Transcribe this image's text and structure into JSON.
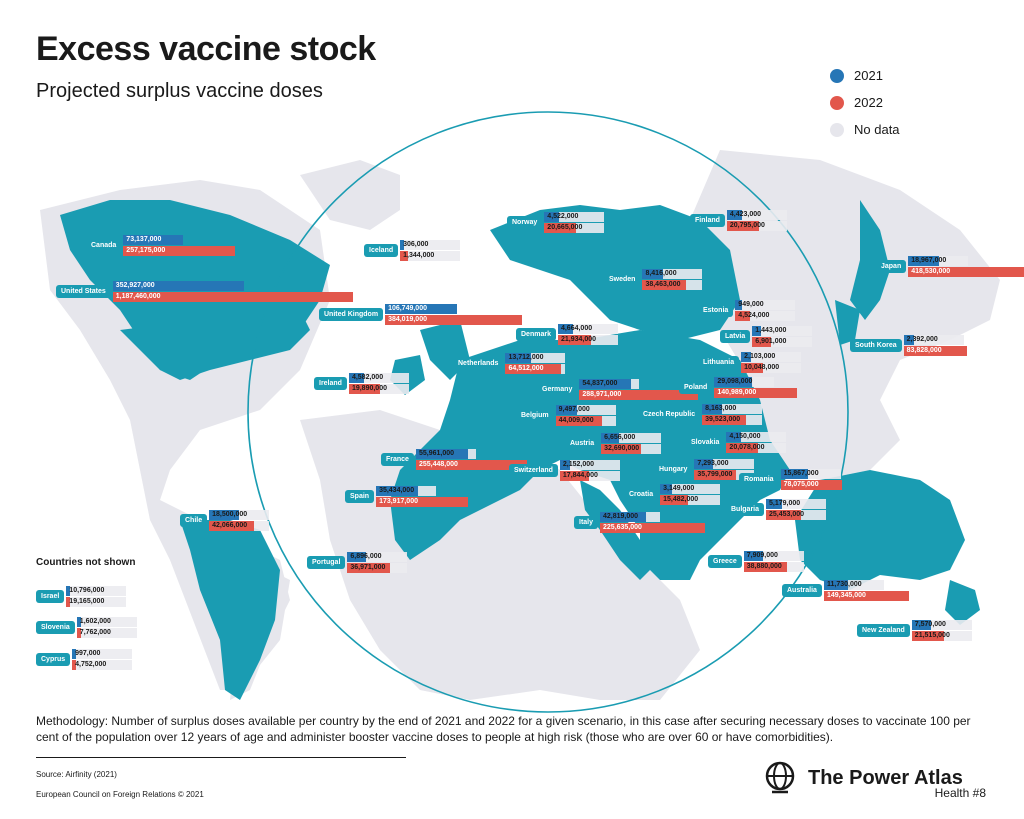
{
  "title": "Excess vaccine stock",
  "subtitle": "Projected surplus vaccine doses",
  "legend": [
    {
      "label": "2021",
      "color": "#2676b6"
    },
    {
      "label": "2022",
      "color": "#e2574c"
    },
    {
      "label": "No data",
      "color": "#e6e6ec"
    }
  ],
  "colors": {
    "map_land": "#1a9cb2",
    "no_data": "#e6e6ec",
    "series_2021": "#2676b6",
    "series_2022": "#e2574c",
    "globe_ring": "#1a9cb2"
  },
  "countries": [
    {
      "name": "Canada",
      "v2021": "73,137,000",
      "v2022": "257,175,000",
      "n2021": 73137000,
      "n2022": 257175000
    },
    {
      "name": "United States",
      "v2021": "352,927,000",
      "v2022": "1,187,460,000",
      "n2021": 352927000,
      "n2022": 1187460000
    },
    {
      "name": "Iceland",
      "v2021": "306,000",
      "v2022": "1,344,000",
      "n2021": 306000,
      "n2022": 1344000
    },
    {
      "name": "Norway",
      "v2021": "4,522,000",
      "v2022": "20,665,000",
      "n2021": 4522000,
      "n2022": 20665000
    },
    {
      "name": "Finland",
      "v2021": "4,423,000",
      "v2022": "20,795,000",
      "n2021": 4423000,
      "n2022": 20795000
    },
    {
      "name": "Sweden",
      "v2021": "8,416,000",
      "v2022": "38,463,000",
      "n2021": 8416000,
      "n2022": 38463000
    },
    {
      "name": "Japan",
      "v2021": "18,967,000",
      "v2022": "418,530,000",
      "n2021": 18967000,
      "n2022": 418530000
    },
    {
      "name": "Estonia",
      "v2021": "949,000",
      "v2022": "4,524,000",
      "n2021": 949000,
      "n2022": 4524000
    },
    {
      "name": "United Kingdom",
      "v2021": "106,749,000",
      "v2022": "384,019,000",
      "n2021": 106749000,
      "n2022": 384019000
    },
    {
      "name": "Denmark",
      "v2021": "4,664,000",
      "v2022": "21,934,000",
      "n2021": 4664000,
      "n2022": 21934000
    },
    {
      "name": "Latvia",
      "v2021": "1,443,000",
      "v2022": "6,901,000",
      "n2021": 1443000,
      "n2022": 6901000
    },
    {
      "name": "South Korea",
      "v2021": "2,392,000",
      "v2022": "83,828,000",
      "n2021": 2392000,
      "n2022": 83828000
    },
    {
      "name": "Lithuania",
      "v2021": "2,103,000",
      "v2022": "10,048,000",
      "n2021": 2103000,
      "n2022": 10048000
    },
    {
      "name": "Netherlands",
      "v2021": "13,712,000",
      "v2022": "64,512,000",
      "n2021": 13712000,
      "n2022": 64512000
    },
    {
      "name": "Ireland",
      "v2021": "4,582,000",
      "v2022": "19,890,000",
      "n2021": 4582000,
      "n2022": 19890000
    },
    {
      "name": "Germany",
      "v2021": "54,837,000",
      "v2022": "288,971,000",
      "n2021": 54837000,
      "n2022": 288971000
    },
    {
      "name": "Poland",
      "v2021": "29,098,000",
      "v2022": "140,989,000",
      "n2021": 29098000,
      "n2022": 140989000
    },
    {
      "name": "Belgium",
      "v2021": "9,497,000",
      "v2022": "44,009,000",
      "n2021": 9497000,
      "n2022": 44009000
    },
    {
      "name": "Czech Republic",
      "v2021": "8,163,000",
      "v2022": "39,523,000",
      "n2021": 8163000,
      "n2022": 39523000
    },
    {
      "name": "Slovakia",
      "v2021": "4,150,000",
      "v2022": "20,078,000",
      "n2021": 4150000,
      "n2022": 20078000
    },
    {
      "name": "Austria",
      "v2021": "6,656,000",
      "v2022": "32,690,000",
      "n2021": 6656000,
      "n2022": 32690000
    },
    {
      "name": "France",
      "v2021": "55,961,000",
      "v2022": "255,448,000",
      "n2021": 55961000,
      "n2022": 255448000
    },
    {
      "name": "Hungary",
      "v2021": "7,293,000",
      "v2022": "35,799,000",
      "n2021": 7293000,
      "n2022": 35799000
    },
    {
      "name": "Switzerland",
      "v2021": "2,152,000",
      "v2022": "17,844,000",
      "n2021": 2152000,
      "n2022": 17844000
    },
    {
      "name": "Romania",
      "v2021": "15,867,000",
      "v2022": "78,075,000",
      "n2021": 15867000,
      "n2022": 78075000
    },
    {
      "name": "Spain",
      "v2021": "35,434,000",
      "v2022": "173,917,000",
      "n2021": 35434000,
      "n2022": 173917000
    },
    {
      "name": "Croatia",
      "v2021": "3,149,000",
      "v2022": "15,482,000",
      "n2021": 3149000,
      "n2022": 15482000
    },
    {
      "name": "Bulgaria",
      "v2021": "5,179,000",
      "v2022": "25,453,000",
      "n2021": 5179000,
      "n2022": 25453000
    },
    {
      "name": "Chile",
      "v2021": "18,500,000",
      "v2022": "42,066,000",
      "n2021": 18500000,
      "n2022": 42066000
    },
    {
      "name": "Italy",
      "v2021": "42,819,000",
      "v2022": "225,635,000",
      "n2021": 42819000,
      "n2022": 225635000
    },
    {
      "name": "Portugal",
      "v2021": "6,896,000",
      "v2022": "36,971,000",
      "n2021": 6896000,
      "n2022": 36971000
    },
    {
      "name": "Greece",
      "v2021": "7,909,000",
      "v2022": "38,880,000",
      "n2021": 7909000,
      "n2022": 38880000
    },
    {
      "name": "Australia",
      "v2021": "11,730,000",
      "v2022": "149,345,000",
      "n2021": 11730000,
      "n2022": 149345000
    },
    {
      "name": "New Zealand",
      "v2021": "7,570,000",
      "v2022": "21,515,000",
      "n2021": 7570000,
      "n2022": 21515000
    }
  ],
  "not_shown": {
    "heading": "Countries not shown",
    "items": [
      {
        "name": "Israel",
        "v2021": "10,796,000",
        "v2022": "19,165,000"
      },
      {
        "name": "Slovenia",
        "v2021": "1,602,000",
        "v2022": "7,762,000"
      },
      {
        "name": "Cyprus",
        "v2021": "997,000",
        "v2022": "4,752,000"
      }
    ]
  },
  "methodology": "Methodology: Number of surplus doses available per country by the end of 2021 and 2022 for a given scenario, in this case after securing necessary doses to vaccinate 100 per cent of the population over 12 years of age and administer booster vaccine doses to people at high risk (those who are over 60 or have comorbidities).",
  "source": "Source: Airfinity (2021)",
  "copyright": "European Council on Foreign Relations © 2021",
  "brand": {
    "name": "The Power Atlas",
    "edition": "Health #8",
    "icon": "globe-icon"
  }
}
